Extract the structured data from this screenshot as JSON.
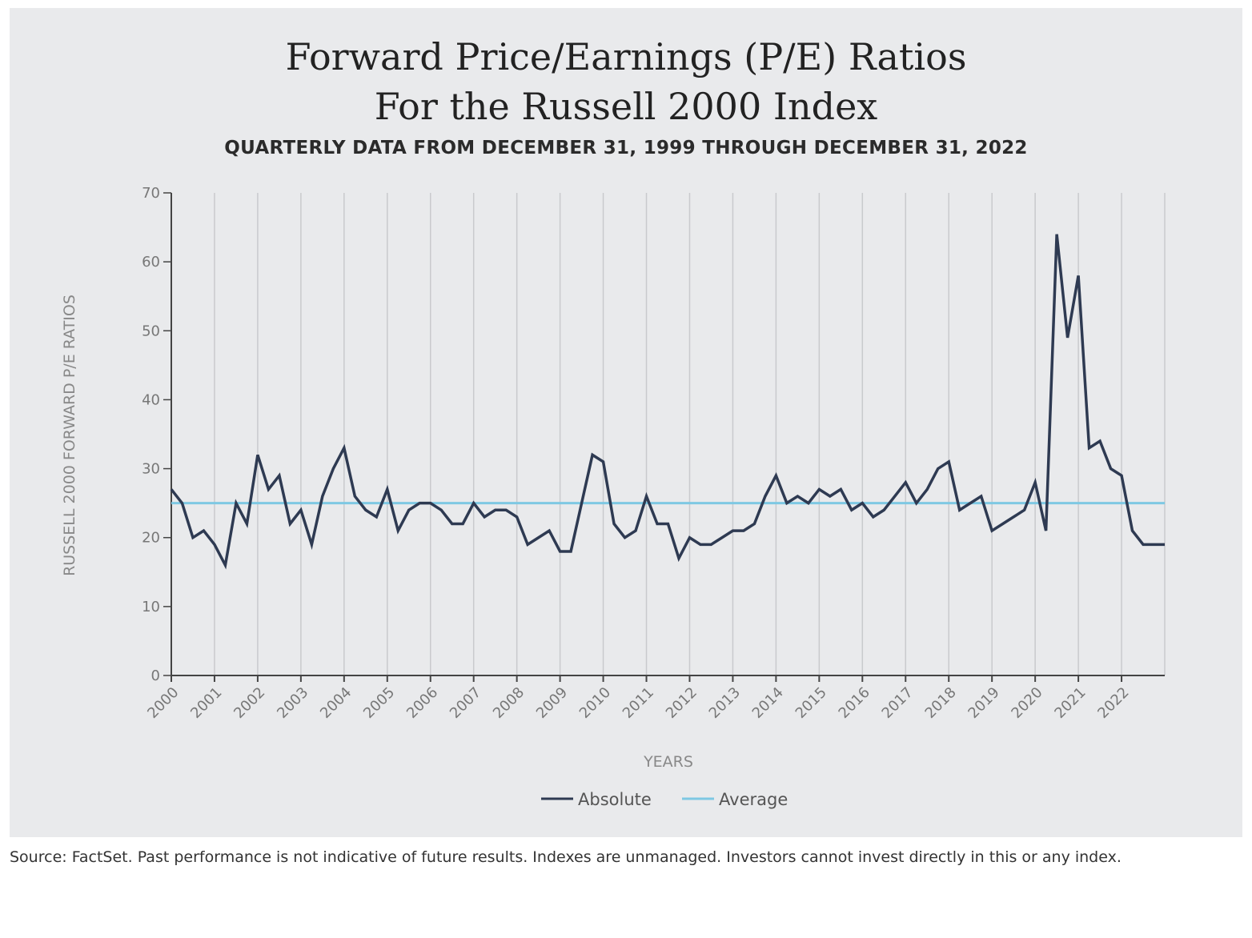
{
  "chart_data": {
    "type": "line",
    "title_line1": "Forward Price/Earnings (P/E) Ratios",
    "title_line2": "For the Russell 2000 Index",
    "subtitle": "QUARTERLY DATA FROM DECEMBER 31, 1999 THROUGH DECEMBER 31, 2022",
    "xlabel": "YEARS",
    "ylabel": "RUSSELL 2000 FORWARD P/E RATIOS",
    "ylim": [
      0,
      70
    ],
    "yticks": [
      0,
      10,
      20,
      30,
      40,
      50,
      60,
      70
    ],
    "xtick_labels": [
      "2000",
      "2001",
      "2002",
      "2003",
      "2004",
      "2005",
      "2006",
      "2007",
      "2008",
      "2009",
      "2010",
      "2011",
      "2012",
      "2013",
      "2014",
      "2015",
      "2016",
      "2017",
      "2018",
      "2019",
      "2020",
      "2021",
      "2022"
    ],
    "x_range": [
      "1999-12-31",
      "2022-12-31"
    ],
    "grid": "vertical",
    "legend_position": "bottom",
    "series": [
      {
        "name": "Absolute",
        "color": "#2e3a52",
        "values": [
          27,
          25,
          20,
          21,
          19,
          16,
          25,
          22,
          32,
          27,
          29,
          22,
          24,
          19,
          26,
          30,
          33,
          26,
          24,
          23,
          27,
          21,
          24,
          25,
          25,
          24,
          22,
          22,
          25,
          23,
          24,
          24,
          23,
          19,
          20,
          21,
          18,
          18,
          25,
          32,
          31,
          22,
          20,
          21,
          26,
          22,
          22,
          17,
          20,
          19,
          19,
          20,
          21,
          21,
          22,
          26,
          29,
          25,
          26,
          25,
          27,
          26,
          27,
          24,
          25,
          23,
          24,
          26,
          28,
          25,
          27,
          30,
          31,
          24,
          25,
          26,
          21,
          22,
          23,
          24,
          28,
          21,
          64,
          49,
          58,
          33,
          34,
          30,
          29,
          21,
          19,
          19,
          19
        ]
      },
      {
        "name": "Average",
        "color": "#7ec8e3",
        "value": 25
      }
    ]
  },
  "footer": {
    "source": "Source: FactSet. Past performance is not indicative of future results. Indexes are unmanaged. Investors cannot invest directly in this or any index."
  }
}
